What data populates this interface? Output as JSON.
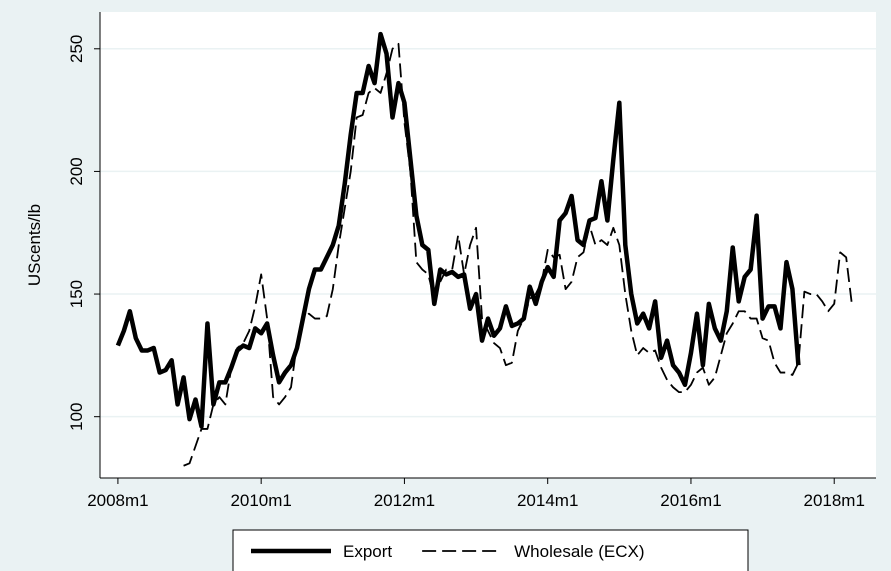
{
  "chart_data": {
    "type": "line",
    "y_label": "UScents/lb",
    "x": [
      576,
      577,
      578,
      579,
      580,
      581,
      582,
      583,
      584,
      585,
      586,
      587,
      588,
      589,
      590,
      591,
      592,
      593,
      594,
      595,
      596,
      597,
      598,
      599,
      600,
      601,
      602,
      603,
      604,
      605,
      606,
      607,
      608,
      609,
      610,
      611,
      612,
      613,
      614,
      615,
      616,
      617,
      618,
      619,
      620,
      621,
      622,
      623,
      624,
      625,
      626,
      627,
      628,
      629,
      630,
      631,
      632,
      633,
      634,
      635,
      636,
      637,
      638,
      639,
      640,
      641,
      642,
      643,
      644,
      645,
      646,
      647,
      648,
      649,
      650,
      651,
      652,
      653,
      654,
      655,
      656,
      657,
      658,
      659,
      660,
      661,
      662,
      663,
      664,
      665,
      666,
      667,
      668,
      669,
      670,
      671,
      672,
      673,
      674,
      675,
      676,
      677,
      678,
      679,
      680,
      681,
      682,
      683,
      684,
      685,
      686,
      687,
      688,
      689,
      690,
      691,
      692,
      693,
      694,
      695,
      696,
      697,
      698,
      699
    ],
    "xlim": [
      573,
      703
    ],
    "xticks": [
      {
        "value": 576,
        "label": "2008m1"
      },
      {
        "value": 600,
        "label": "2010m1"
      },
      {
        "value": 624,
        "label": "2012m1"
      },
      {
        "value": 648,
        "label": "2014m1"
      },
      {
        "value": 672,
        "label": "2016m1"
      },
      {
        "value": 696,
        "label": "2018m1"
      }
    ],
    "ylim": [
      75,
      265
    ],
    "yticks": [
      100,
      150,
      200,
      250
    ],
    "grid": true,
    "legend_position": "bottom",
    "series": [
      {
        "name": "Export",
        "color": "#000000",
        "style": "solid",
        "values": [
          129,
          135,
          143,
          132,
          127,
          127,
          128,
          118,
          119,
          123,
          105,
          116,
          99,
          107,
          96,
          138,
          105,
          114,
          114,
          120,
          127,
          129,
          128,
          136,
          134,
          138,
          125,
          114,
          118,
          121,
          128,
          140,
          152,
          160,
          160,
          165,
          170,
          178,
          195,
          215,
          232,
          232,
          243,
          236,
          256,
          248,
          222,
          236,
          228,
          205,
          182,
          170,
          168,
          146,
          160,
          158,
          159,
          157,
          158,
          144,
          150,
          131,
          140,
          133,
          136,
          145,
          137,
          138,
          140,
          153,
          146,
          155,
          161,
          157,
          180,
          183,
          190,
          172,
          170,
          180,
          181,
          196,
          180,
          205,
          228,
          170,
          150,
          138,
          142,
          136,
          147,
          124,
          131,
          121,
          118,
          113,
          126,
          142,
          121,
          146,
          136,
          131,
          143,
          169,
          147,
          157,
          160,
          182,
          140,
          145,
          145,
          136,
          163,
          152,
          121,
          null,
          null,
          null,
          null,
          null,
          null,
          null,
          null,
          null
        ]
      },
      {
        "name": "Wholesale (ECX)",
        "color": "#000000",
        "style": "dashed",
        "values": [
          null,
          null,
          null,
          null,
          null,
          null,
          null,
          null,
          null,
          null,
          null,
          80,
          81,
          88,
          95,
          95,
          105,
          108,
          105,
          120,
          128,
          130,
          135,
          145,
          158,
          140,
          108,
          105,
          108,
          112,
          130,
          140,
          142,
          140,
          140,
          141,
          152,
          170,
          185,
          200,
          222,
          223,
          232,
          234,
          232,
          240,
          250,
          252,
          220,
          200,
          163,
          160,
          158,
          148,
          155,
          160,
          160,
          174,
          158,
          170,
          177,
          140,
          135,
          130,
          128,
          121,
          122,
          135,
          140,
          148,
          150,
          155,
          168,
          165,
          166,
          152,
          155,
          165,
          167,
          178,
          170,
          172,
          170,
          177,
          170,
          150,
          135,
          125,
          128,
          126,
          127,
          120,
          115,
          112,
          110,
          110,
          113,
          118,
          120,
          113,
          116,
          125,
          134,
          138,
          143,
          143,
          140,
          140,
          132,
          131,
          122,
          118,
          118,
          117,
          122,
          151,
          150,
          150,
          147,
          143,
          146,
          167,
          165,
          145
        ]
      }
    ]
  }
}
